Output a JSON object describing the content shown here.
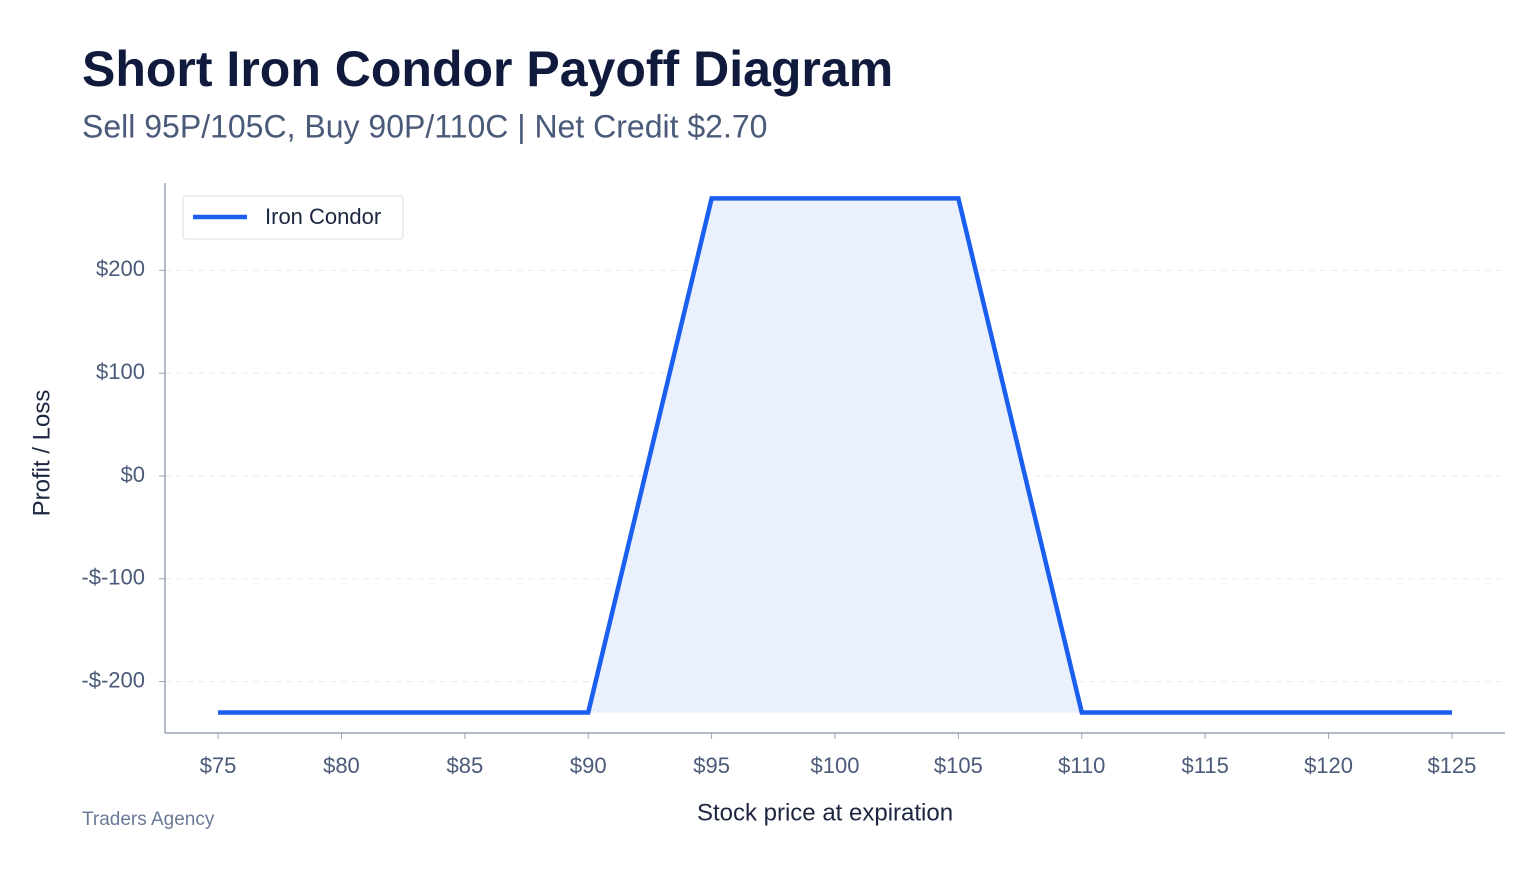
{
  "chart_data": {
    "type": "line",
    "title": "Short Iron Condor Payoff Diagram",
    "subtitle": "Sell 95P/105C, Buy 90P/110C | Net Credit $2.70",
    "x_label": "Stock price at expiration",
    "y_label": "Profit / Loss",
    "source": "Traders Agency",
    "x": [
      75,
      90,
      95,
      105,
      110,
      125
    ],
    "series": [
      {
        "name": "Iron Condor",
        "color": "#1a5ff0",
        "values": [
          -230,
          -230,
          270,
          270,
          -230,
          -230
        ]
      }
    ],
    "fill_color": "#eaf0fc",
    "xlim": [
      72.85,
      127.15
    ],
    "ylim": [
      -250,
      285
    ],
    "xticks": [
      {
        "value": 75,
        "label": "$75"
      },
      {
        "value": 80,
        "label": "$80"
      },
      {
        "value": 85,
        "label": "$85"
      },
      {
        "value": 90,
        "label": "$90"
      },
      {
        "value": 95,
        "label": "$95"
      },
      {
        "value": 100,
        "label": "$100"
      },
      {
        "value": 105,
        "label": "$105"
      },
      {
        "value": 110,
        "label": "$110"
      },
      {
        "value": 115,
        "label": "$115"
      },
      {
        "value": 120,
        "label": "$120"
      },
      {
        "value": 125,
        "label": "$125"
      }
    ],
    "yticks": [
      {
        "value": -200,
        "label": "-$-200"
      },
      {
        "value": -100,
        "label": "-$-100"
      },
      {
        "value": 0,
        "label": "$0"
      },
      {
        "value": 100,
        "label": "$100"
      },
      {
        "value": 200,
        "label": "$200"
      }
    ],
    "grid": true,
    "legend": "upper left"
  }
}
